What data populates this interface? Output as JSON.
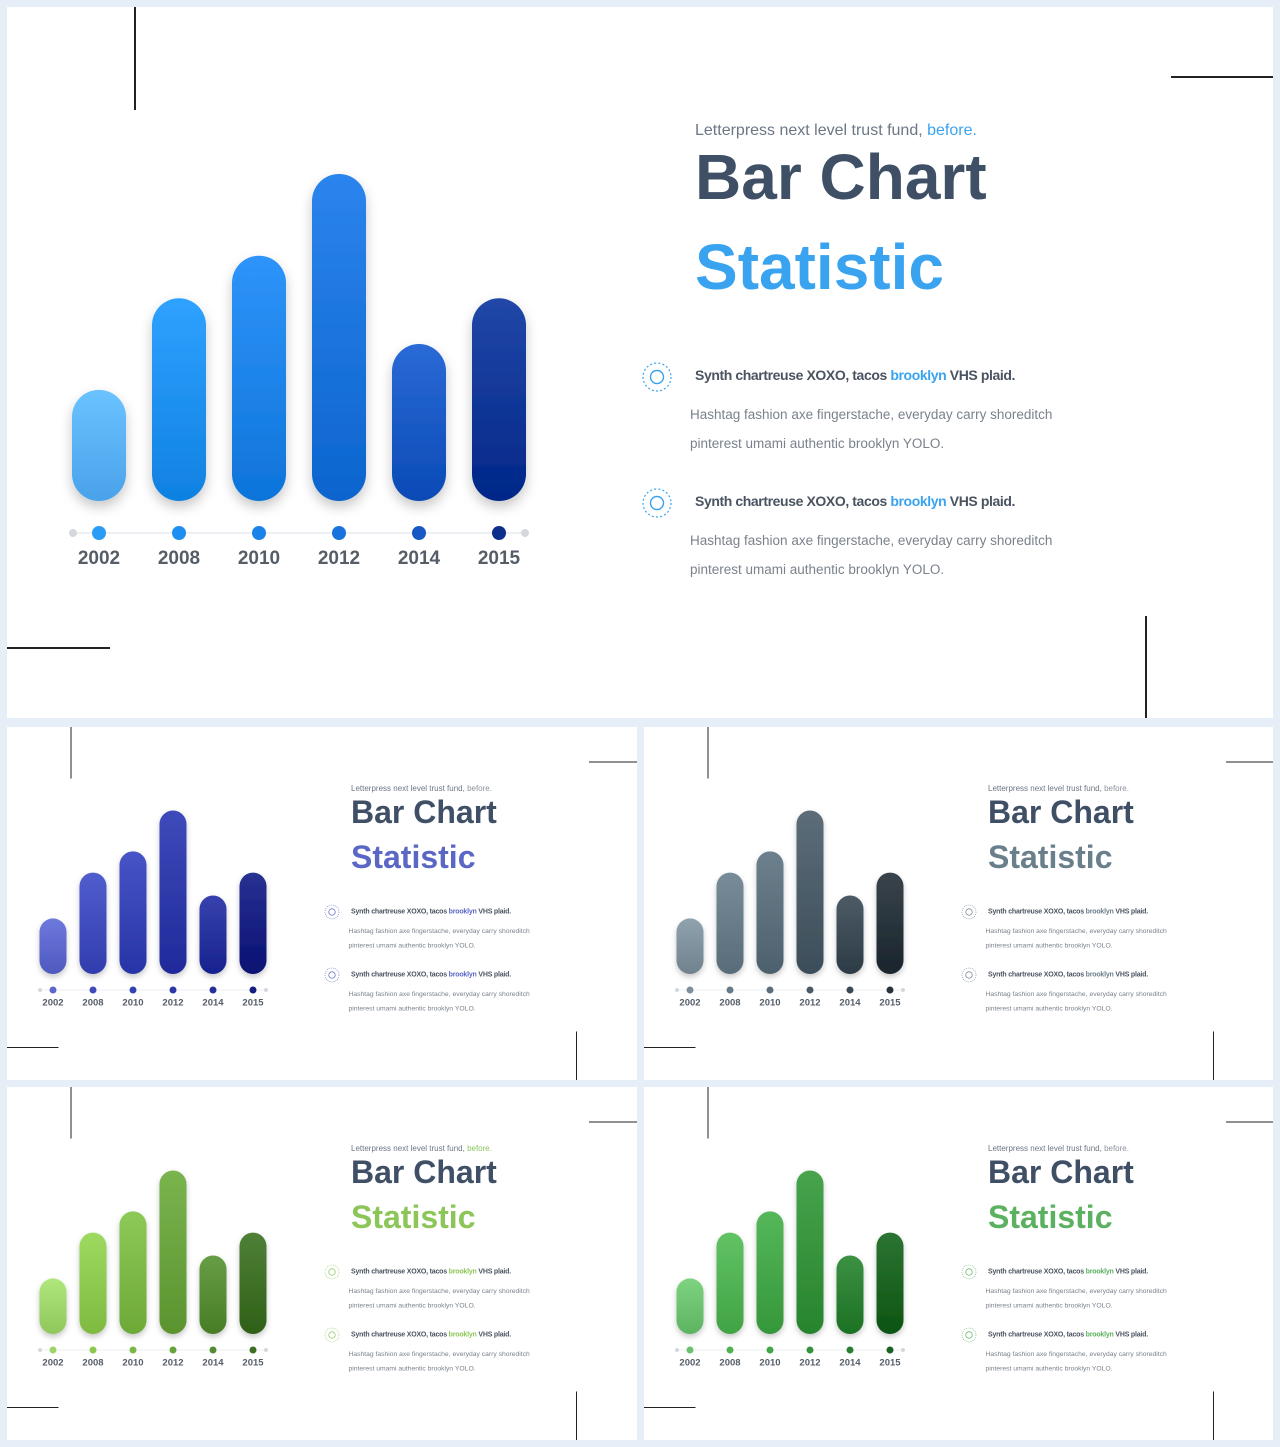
{
  "slides": [
    {
      "subtitle": {
        "text": "Letterpress next level trust fund, ",
        "accent": "before."
      },
      "title": "Bar Chart",
      "title_accent": "Statistic",
      "bullets": [
        {
          "bold_pre": "Synth chartreuse XOXO, tacos ",
          "bold_accent": "brooklyn",
          "bold_post": " VHS plaid.",
          "body": "Hashtag fashion axe fingerstache, everyday carry shoreditch pinterest umami  authentic brooklyn YOLO."
        },
        {
          "bold_pre": "Synth chartreuse XOXO, tacos ",
          "bold_accent": "brooklyn",
          "bold_post": " VHS plaid.",
          "body": "Hashtag fashion axe fingerstache, everyday carry shoreditch pinterest umami  authentic brooklyn YOLO."
        }
      ],
      "colors": {
        "accent": "#3aa3ef",
        "bars": [
          "#58b0f8",
          "#1d8ff0",
          "#1c82e8",
          "#1a72dc",
          "#1858c4",
          "#0f3596"
        ],
        "dots": [
          "#2a9cf3",
          "#1f8ef0",
          "#1b82e8",
          "#1a72dc",
          "#1858c4",
          "#0d2f8c"
        ]
      }
    },
    {
      "subtitle": {
        "text": "Letterpress next level trust fund, ",
        "accent": "before."
      },
      "title": "Bar Chart",
      "title_accent": "Statistic",
      "bullets": [
        {
          "bold_pre": "Synth chartreuse XOXO, tacos ",
          "bold_accent": "brooklyn",
          "bold_post": " VHS plaid.",
          "body": "Hashtag fashion axe fingerstache, everyday carry shoreditch pinterest umami  authentic brooklyn YOLO."
        },
        {
          "bold_pre": "Synth chartreuse XOXO, tacos ",
          "bold_accent": "brooklyn",
          "bold_post": " VHS plaid.",
          "body": "Hashtag fashion axe fingerstache, everyday carry shoreditch pinterest umami  authentic brooklyn YOLO."
        }
      ],
      "colors": {
        "accent": "#5a67c4",
        "subtitle_accent": "#8a929c",
        "bars": [
          "#5c67cc",
          "#3f4bbb",
          "#3542b4",
          "#2d38a8",
          "#25309c",
          "#161f80"
        ],
        "dots": [
          "#5c67cc",
          "#3f4bbb",
          "#3542b4",
          "#2d38a8",
          "#25309c",
          "#161f80"
        ]
      }
    },
    {
      "subtitle": {
        "text": "Letterpress next level trust fund, ",
        "accent": "before."
      },
      "title": "Bar Chart",
      "title_accent": "Statistic",
      "bullets": [
        {
          "bold_pre": "Synth chartreuse XOXO, tacos ",
          "bold_accent": "brooklyn",
          "bold_post": " VHS plaid.",
          "body": "Hashtag fashion axe fingerstache, everyday carry shoreditch pinterest umami  authentic brooklyn YOLO."
        },
        {
          "bold_pre": "Synth chartreuse XOXO, tacos ",
          "bold_accent": "brooklyn",
          "bold_post": " VHS plaid.",
          "body": "Hashtag fashion axe fingerstache, everyday carry shoreditch pinterest umami  authentic brooklyn YOLO."
        }
      ],
      "colors": {
        "accent": "#6a7f8c",
        "subtitle_accent": "#8a929c",
        "bars": [
          "#7d909c",
          "#667a87",
          "#5b6e7b",
          "#4a5b67",
          "#3a4954",
          "#27323a"
        ],
        "dots": [
          "#7d909c",
          "#667a87",
          "#5b6e7b",
          "#4a5b67",
          "#3a4954",
          "#27323a"
        ]
      }
    },
    {
      "subtitle": {
        "text": "Letterpress next level trust fund, ",
        "accent": "before."
      },
      "title": "Bar Chart",
      "title_accent": "Statistic",
      "bullets": [
        {
          "bold_pre": "Synth chartreuse XOXO, tacos ",
          "bold_accent": "brooklyn",
          "bold_post": " VHS plaid.",
          "body": "Hashtag fashion axe fingerstache, everyday carry shoreditch pinterest umami  authentic brooklyn YOLO."
        },
        {
          "bold_pre": "Synth chartreuse XOXO, tacos ",
          "bold_accent": "brooklyn",
          "bold_post": " VHS plaid.",
          "body": "Hashtag fashion axe fingerstache, everyday carry shoreditch pinterest umami  authentic brooklyn YOLO."
        }
      ],
      "colors": {
        "accent": "#8cc659",
        "bars": [
          "#9ed56a",
          "#8cc84e",
          "#7bb745",
          "#68a23c",
          "#558b33",
          "#3d6e25"
        ],
        "dots": [
          "#9ed56a",
          "#8cc84e",
          "#7bb745",
          "#68a23c",
          "#558b33",
          "#3d6e25"
        ]
      }
    },
    {
      "subtitle": {
        "text": "Letterpress next level trust fund, ",
        "accent": "before."
      },
      "title": "Bar Chart",
      "title_accent": "Statistic",
      "bullets": [
        {
          "bold_pre": "Synth chartreuse XOXO, tacos ",
          "bold_accent": "brooklyn",
          "bold_post": " VHS plaid.",
          "body": "Hashtag fashion axe fingerstache, everyday carry shoreditch pinterest umami  authentic brooklyn YOLO."
        },
        {
          "bold_pre": "Synth chartreuse XOXO, tacos ",
          "bold_accent": "brooklyn",
          "bold_post": " VHS plaid.",
          "body": "Hashtag fashion axe fingerstache, everyday carry shoreditch pinterest umami  authentic brooklyn YOLO."
        }
      ],
      "colors": {
        "accent": "#5cb160",
        "subtitle_accent": "#8a929c",
        "bars": [
          "#6cc16f",
          "#4fb152",
          "#43a548",
          "#35923b",
          "#2a7f31",
          "#1a6220"
        ],
        "dots": [
          "#6cc16f",
          "#4fb152",
          "#43a548",
          "#35923b",
          "#2a7f31",
          "#1a6220"
        ]
      }
    }
  ],
  "chart_data": {
    "type": "bar",
    "categories": [
      "2002",
      "2008",
      "2010",
      "2012",
      "2014",
      "2015"
    ],
    "values": [
      34,
      62,
      75,
      100,
      48,
      62
    ],
    "ylim": [
      0,
      100
    ]
  }
}
